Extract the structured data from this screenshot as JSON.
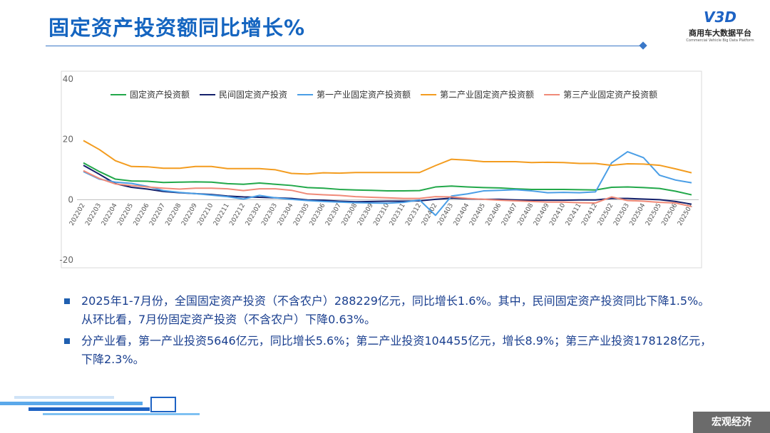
{
  "header": {
    "title": "固定资产投资额同比增长%",
    "logo_mark": "V3D",
    "logo_name": "商用车大数据平台",
    "logo_sub": "Commercial Vehicle Big Data Platform"
  },
  "chart_data": {
    "type": "line",
    "categories": [
      "202202",
      "202203",
      "202204",
      "202205",
      "202206",
      "202207",
      "202208",
      "202209",
      "202210",
      "202211",
      "202212",
      "202302",
      "202303",
      "202304",
      "202305",
      "202306",
      "202307",
      "202308",
      "202309",
      "202310",
      "202311",
      "202312",
      "202402",
      "202403",
      "202404",
      "202405",
      "202406",
      "202407",
      "202408",
      "202409",
      "202410",
      "202411",
      "202412",
      "202502",
      "202503",
      "202504",
      "202505",
      "202506",
      "202507"
    ],
    "series": [
      {
        "name": "固定资产投资额",
        "color": "#22a84a",
        "values": [
          12.2,
          9.3,
          6.8,
          6.2,
          6.1,
          5.7,
          5.8,
          5.9,
          5.8,
          5.3,
          5.1,
          5.5,
          5.1,
          4.7,
          4.0,
          3.8,
          3.4,
          3.2,
          3.1,
          2.9,
          2.9,
          3.0,
          4.2,
          4.5,
          4.2,
          4.0,
          3.9,
          3.6,
          3.4,
          3.4,
          3.4,
          3.3,
          3.2,
          4.1,
          4.2,
          4.0,
          3.7,
          2.8,
          1.6
        ]
      },
      {
        "name": "民间固定资产投资",
        "color": "#14206b",
        "values": [
          11.4,
          8.4,
          5.3,
          4.1,
          3.5,
          2.7,
          2.3,
          2.0,
          1.7,
          1.2,
          0.9,
          0.8,
          0.6,
          0.4,
          -0.1,
          -0.2,
          -0.5,
          -0.7,
          -0.6,
          -0.5,
          -0.5,
          -0.4,
          0.1,
          0.5,
          0.3,
          0.1,
          0.1,
          -0.1,
          -0.2,
          -0.2,
          -0.2,
          -0.1,
          -0.1,
          0.4,
          0.4,
          0.2,
          0.0,
          -0.6,
          -1.5
        ]
      },
      {
        "name": "第一产业固定资产投资额",
        "color": "#4a9ee6",
        "values": [
          9.3,
          6.8,
          5.8,
          5.4,
          4.4,
          3.0,
          2.4,
          2.0,
          1.5,
          1.0,
          0.2,
          1.4,
          0.6,
          0.1,
          -0.3,
          -0.6,
          -0.8,
          -1.0,
          -1.1,
          -1.2,
          -0.9,
          -0.1,
          -5.2,
          1.2,
          1.9,
          2.9,
          3.1,
          3.3,
          2.9,
          2.3,
          2.4,
          2.3,
          2.6,
          12.2,
          15.9,
          13.9,
          8.1,
          6.5,
          5.6
        ]
      },
      {
        "name": "第二产业固定资产投资额",
        "color": "#f39c1f",
        "values": [
          19.6,
          16.6,
          12.9,
          11.0,
          10.9,
          10.4,
          10.4,
          11.0,
          11.0,
          10.3,
          10.3,
          10.3,
          9.9,
          8.7,
          8.5,
          8.9,
          8.8,
          9.0,
          9.0,
          9.0,
          9.0,
          9.0,
          11.3,
          13.4,
          13.1,
          12.6,
          12.6,
          12.6,
          12.3,
          12.4,
          12.3,
          12.0,
          12.0,
          11.4,
          11.9,
          11.8,
          11.4,
          10.2,
          8.9
        ]
      },
      {
        "name": "第三产业固定资产投资额",
        "color": "#f08a78",
        "values": [
          9.6,
          7.0,
          5.2,
          4.7,
          4.2,
          3.8,
          3.5,
          3.8,
          3.8,
          3.6,
          3.0,
          3.6,
          3.6,
          3.1,
          1.9,
          1.6,
          1.4,
          1.0,
          0.8,
          0.6,
          0.4,
          0.4,
          1.0,
          0.9,
          0.4,
          0.1,
          -0.2,
          -0.4,
          -0.6,
          -0.8,
          -0.8,
          -1.0,
          -1.1,
          0.9,
          -0.3,
          -0.5,
          -0.9,
          -1.1,
          -2.3
        ]
      }
    ],
    "ylim": [
      -20,
      40
    ],
    "yticks": [
      -20,
      0,
      20,
      40
    ],
    "grid": false,
    "legend": "top"
  },
  "bullets": [
    "2025年1-7月份，全国固定资产投资（不含农户）288229亿元，同比增长1.6%。其中，民间固定资产投资同比下降1.5%。从环比看，7月份固定资产投资（不含农户）下降0.63%。",
    "分产业看，第一产业投资5646亿元，同比增长5.6%；第二产业投资104455亿元，增长8.9%；第三产业投资178128亿元，下降2.3%。"
  ],
  "footer": {
    "tag": "宏观经济"
  }
}
